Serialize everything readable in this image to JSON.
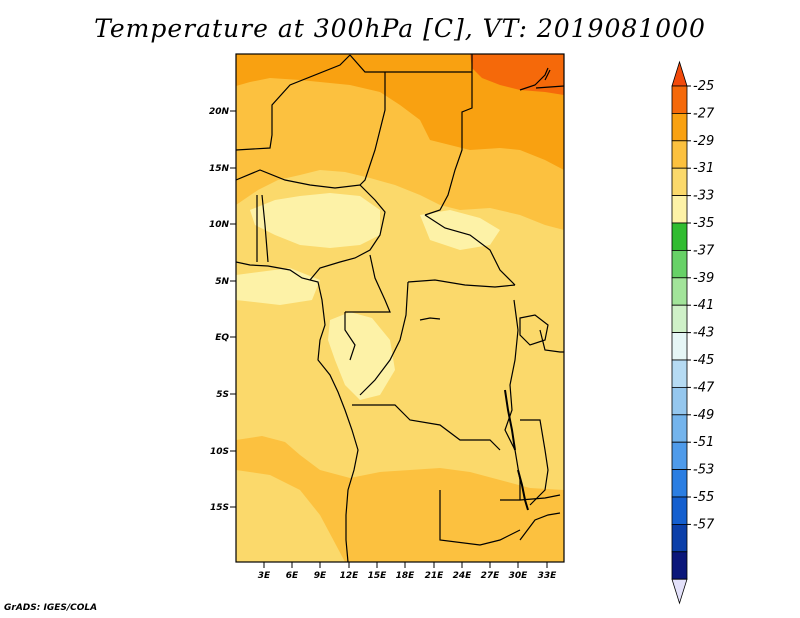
{
  "title": "Temperature at 300hPa [C], VT: 2019081000",
  "credit": "GrADS: IGES/COLA",
  "map": {
    "lat_labels": [
      "20N",
      "15N",
      "10N",
      "5N",
      "EQ",
      "5S",
      "10S",
      "15S"
    ],
    "lon_labels": [
      "3E",
      "6E",
      "9E",
      "12E",
      "15E",
      "18E",
      "21E",
      "24E",
      "27E",
      "30E",
      "33E"
    ],
    "field_colors": {
      "c_m31_m29": "#fcc13f",
      "c_m33_m31": "#fbd96b",
      "c_m35_m33": "#fdf2a7",
      "c_m29_m27": "#f9a111",
      "c_m27_m25": "#f5690a"
    }
  },
  "colorbar": {
    "labels": [
      "-25",
      "-27",
      "-29",
      "-31",
      "-33",
      "-35",
      "-37",
      "-39",
      "-41",
      "-43",
      "-45",
      "-47",
      "-49",
      "-51",
      "-53",
      "-55",
      "-57"
    ],
    "colors": [
      "#f24a0b",
      "#f5690a",
      "#f9a111",
      "#fcc13f",
      "#fbd96b",
      "#fdf2a7",
      "#30bc30",
      "#67d167",
      "#a2e49a",
      "#cff0c8",
      "#e6f6f6",
      "#b6dbf3",
      "#95c7ee",
      "#74b4ec",
      "#4f9bea",
      "#2b7ee2",
      "#145fcf",
      "#0b3fa9",
      "#0b177a",
      "#e3e1fa"
    ]
  }
}
